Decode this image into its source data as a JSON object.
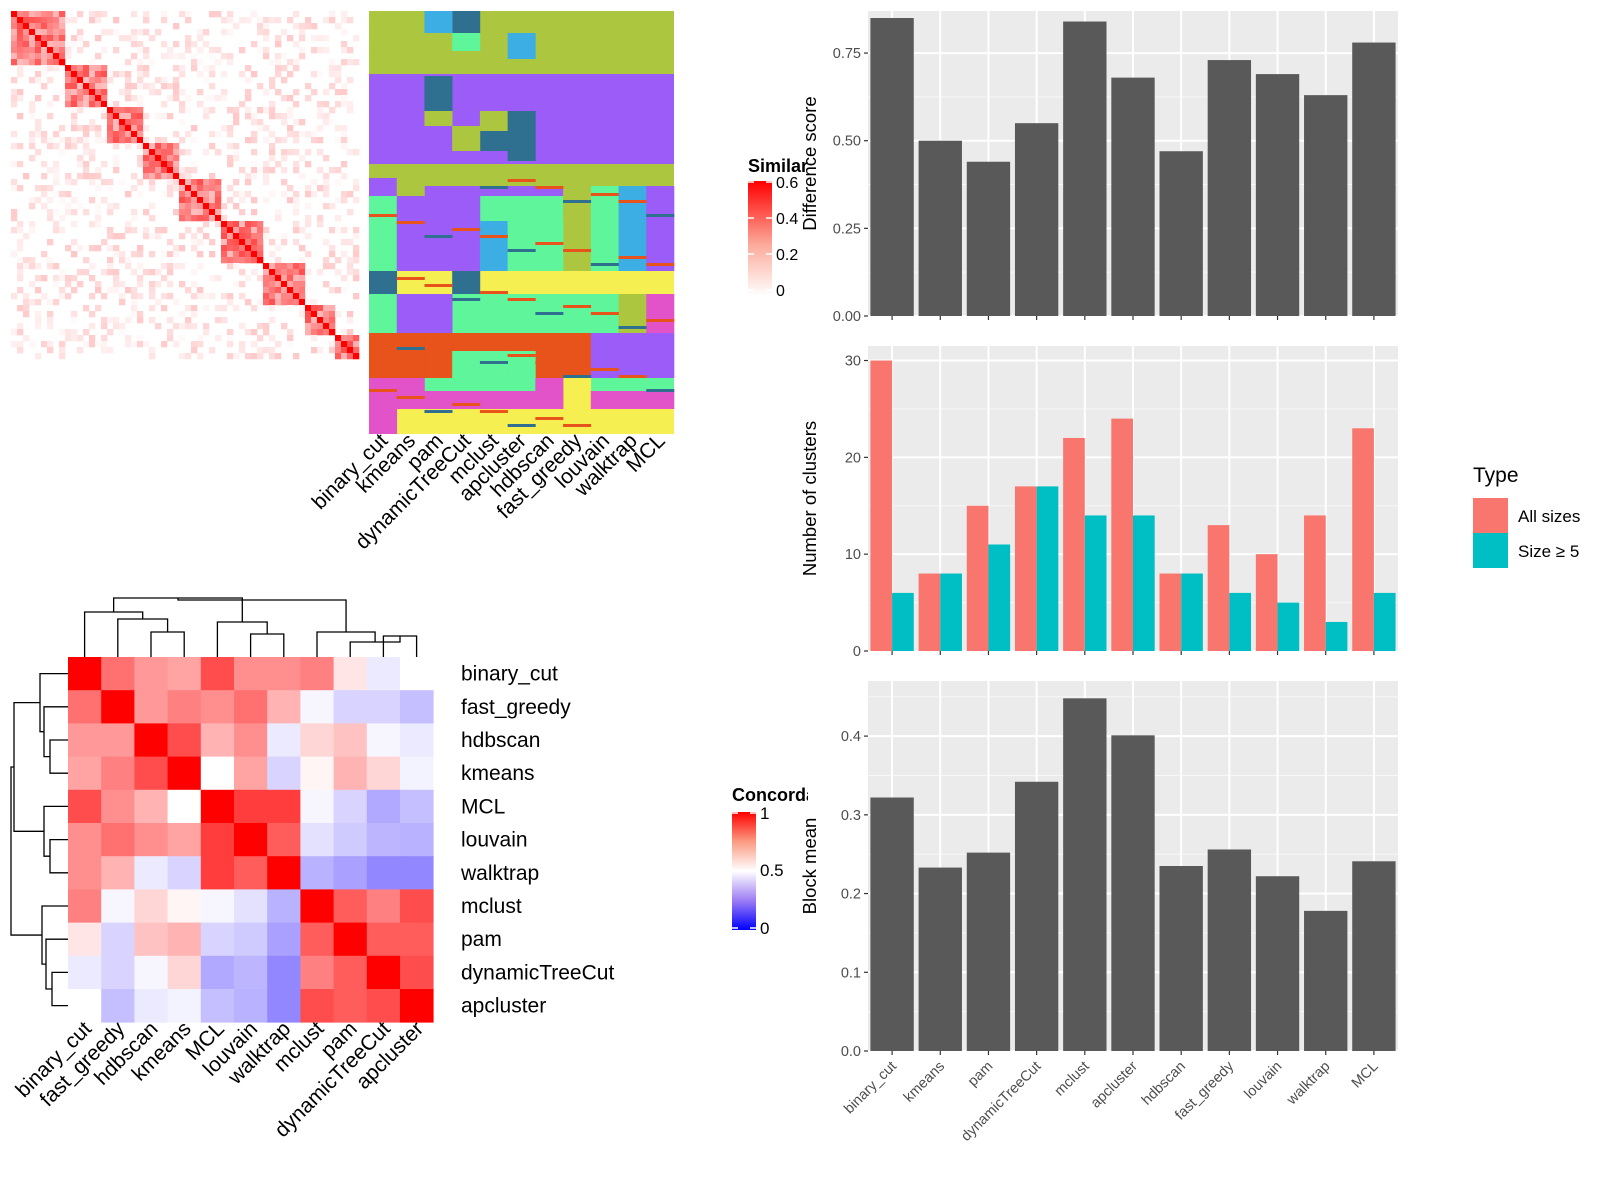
{
  "chart_data": [
    {
      "type": "heatmap",
      "id": "similarity",
      "legend_title": "Similarity",
      "legend_ticks": [
        "0.6",
        "0.4",
        "0.2",
        "0"
      ],
      "legend_values": [
        0.6,
        0.4,
        0.2,
        0
      ],
      "colors": {
        "high": "#ff0000",
        "low": "#ffffff"
      }
    },
    {
      "type": "heatmap",
      "id": "cluster-assignments",
      "columns": [
        "binary_cut",
        "kmeans",
        "pam",
        "dynamicTreeCut",
        "mclust",
        "apcluster",
        "hdbscan",
        "fast_greedy",
        "louvain",
        "walktrap",
        "MCL"
      ],
      "colors": {
        "olive": "#adc640",
        "violet": "#9b5cf7",
        "orange": "#e8531b",
        "yellow": "#f6ef52",
        "magenta": "#e252c9",
        "mint": "#5ff59b",
        "navy": "#2f7090",
        "blue": "#3daee4"
      }
    },
    {
      "type": "heatmap",
      "id": "concordance",
      "legend_title": "Concordance",
      "legend_ticks": [
        "1",
        "0.5",
        "0"
      ],
      "legend_values": [
        1,
        0.5,
        0
      ],
      "row_labels": [
        "binary_cut",
        "fast_greedy",
        "hdbscan",
        "kmeans",
        "MCL",
        "louvain",
        "walktrap",
        "mclust",
        "pam",
        "dynamicTreeCut",
        "apcluster"
      ],
      "col_labels": [
        "binary_cut",
        "fast_greedy",
        "hdbscan",
        "kmeans",
        "MCL",
        "louvain",
        "walktrap",
        "mclust",
        "pam",
        "dynamicTreeCut",
        "apcluster"
      ],
      "values": [
        [
          1.0,
          0.78,
          0.7,
          0.68,
          0.85,
          0.72,
          0.72,
          0.75,
          0.55,
          0.45,
          0.5
        ],
        [
          0.78,
          1.0,
          0.7,
          0.75,
          0.72,
          0.78,
          0.65,
          0.48,
          0.4,
          0.4,
          0.35
        ],
        [
          0.7,
          0.7,
          1.0,
          0.85,
          0.65,
          0.72,
          0.45,
          0.58,
          0.62,
          0.48,
          0.45
        ],
        [
          0.68,
          0.75,
          0.85,
          1.0,
          0.5,
          0.68,
          0.4,
          0.52,
          0.65,
          0.58,
          0.47
        ],
        [
          0.85,
          0.72,
          0.65,
          0.5,
          1.0,
          0.88,
          0.88,
          0.48,
          0.4,
          0.3,
          0.35
        ],
        [
          0.72,
          0.78,
          0.72,
          0.68,
          0.88,
          1.0,
          0.82,
          0.43,
          0.38,
          0.33,
          0.32
        ],
        [
          0.72,
          0.65,
          0.45,
          0.4,
          0.88,
          0.82,
          1.0,
          0.32,
          0.28,
          0.22,
          0.22
        ],
        [
          0.75,
          0.48,
          0.58,
          0.52,
          0.48,
          0.43,
          0.32,
          1.0,
          0.82,
          0.75,
          0.85
        ],
        [
          0.55,
          0.4,
          0.62,
          0.65,
          0.4,
          0.38,
          0.28,
          0.82,
          1.0,
          0.82,
          0.82
        ],
        [
          0.45,
          0.4,
          0.48,
          0.58,
          0.3,
          0.33,
          0.22,
          0.75,
          0.82,
          1.0,
          0.85
        ],
        [
          0.5,
          0.35,
          0.45,
          0.47,
          0.35,
          0.32,
          0.22,
          0.85,
          0.82,
          0.85,
          1.0
        ]
      ],
      "colors": {
        "high": "#ff0000",
        "mid": "#ffffff",
        "low": "#0000ff"
      }
    },
    {
      "type": "bar",
      "id": "difference",
      "categories": [
        "binary_cut",
        "kmeans",
        "pam",
        "dynamicTreeCut",
        "mclust",
        "apcluster",
        "hdbscan",
        "fast_greedy",
        "louvain",
        "walktrap",
        "MCL"
      ],
      "values": [
        0.85,
        0.5,
        0.44,
        0.55,
        0.84,
        0.68,
        0.47,
        0.73,
        0.69,
        0.63,
        0.78
      ],
      "ylabel": "Difference score",
      "ylim": [
        0,
        0.87
      ],
      "yticks": [
        "0.00",
        "0.25",
        "0.50",
        "0.75"
      ],
      "ytick_values": [
        0,
        0.25,
        0.5,
        0.75
      ],
      "grid": true,
      "colors": {
        "bar": "#595959",
        "panel": "#ebebeb"
      }
    },
    {
      "type": "bar",
      "id": "cluster-counts",
      "categories": [
        "binary_cut",
        "kmeans",
        "pam",
        "dynamicTreeCut",
        "mclust",
        "apcluster",
        "hdbscan",
        "fast_greedy",
        "louvain",
        "walktrap",
        "MCL"
      ],
      "series": [
        {
          "name": "All sizes",
          "values": [
            30,
            8,
            15,
            17,
            22,
            24,
            8,
            13,
            10,
            14,
            23
          ],
          "color": "#f8766d"
        },
        {
          "name": "Size ≥ 5",
          "values": [
            6,
            8,
            11,
            17,
            14,
            14,
            8,
            6,
            5,
            3,
            6
          ],
          "color": "#00bfc4"
        }
      ],
      "ylabel": "Number of clusters",
      "ylim": [
        0,
        31.5
      ],
      "yticks": [
        "0",
        "10",
        "20",
        "30"
      ],
      "ytick_values": [
        0,
        10,
        20,
        30
      ],
      "legend_title": "Type",
      "legend_position": "right",
      "grid": true,
      "colors": {
        "panel": "#ebebeb"
      }
    },
    {
      "type": "bar",
      "id": "block-mean",
      "categories": [
        "binary_cut",
        "kmeans",
        "pam",
        "dynamicTreeCut",
        "mclust",
        "apcluster",
        "hdbscan",
        "fast_greedy",
        "louvain",
        "walktrap",
        "MCL"
      ],
      "values": [
        0.322,
        0.233,
        0.252,
        0.342,
        0.448,
        0.401,
        0.235,
        0.256,
        0.222,
        0.178,
        0.241
      ],
      "ylabel": "Block mean",
      "ylim": [
        0,
        0.47
      ],
      "yticks": [
        "0.0",
        "0.1",
        "0.2",
        "0.3",
        "0.4"
      ],
      "ytick_values": [
        0,
        0.1,
        0.2,
        0.3,
        0.4
      ],
      "grid": true,
      "colors": {
        "bar": "#595959",
        "panel": "#ebebeb"
      }
    }
  ]
}
